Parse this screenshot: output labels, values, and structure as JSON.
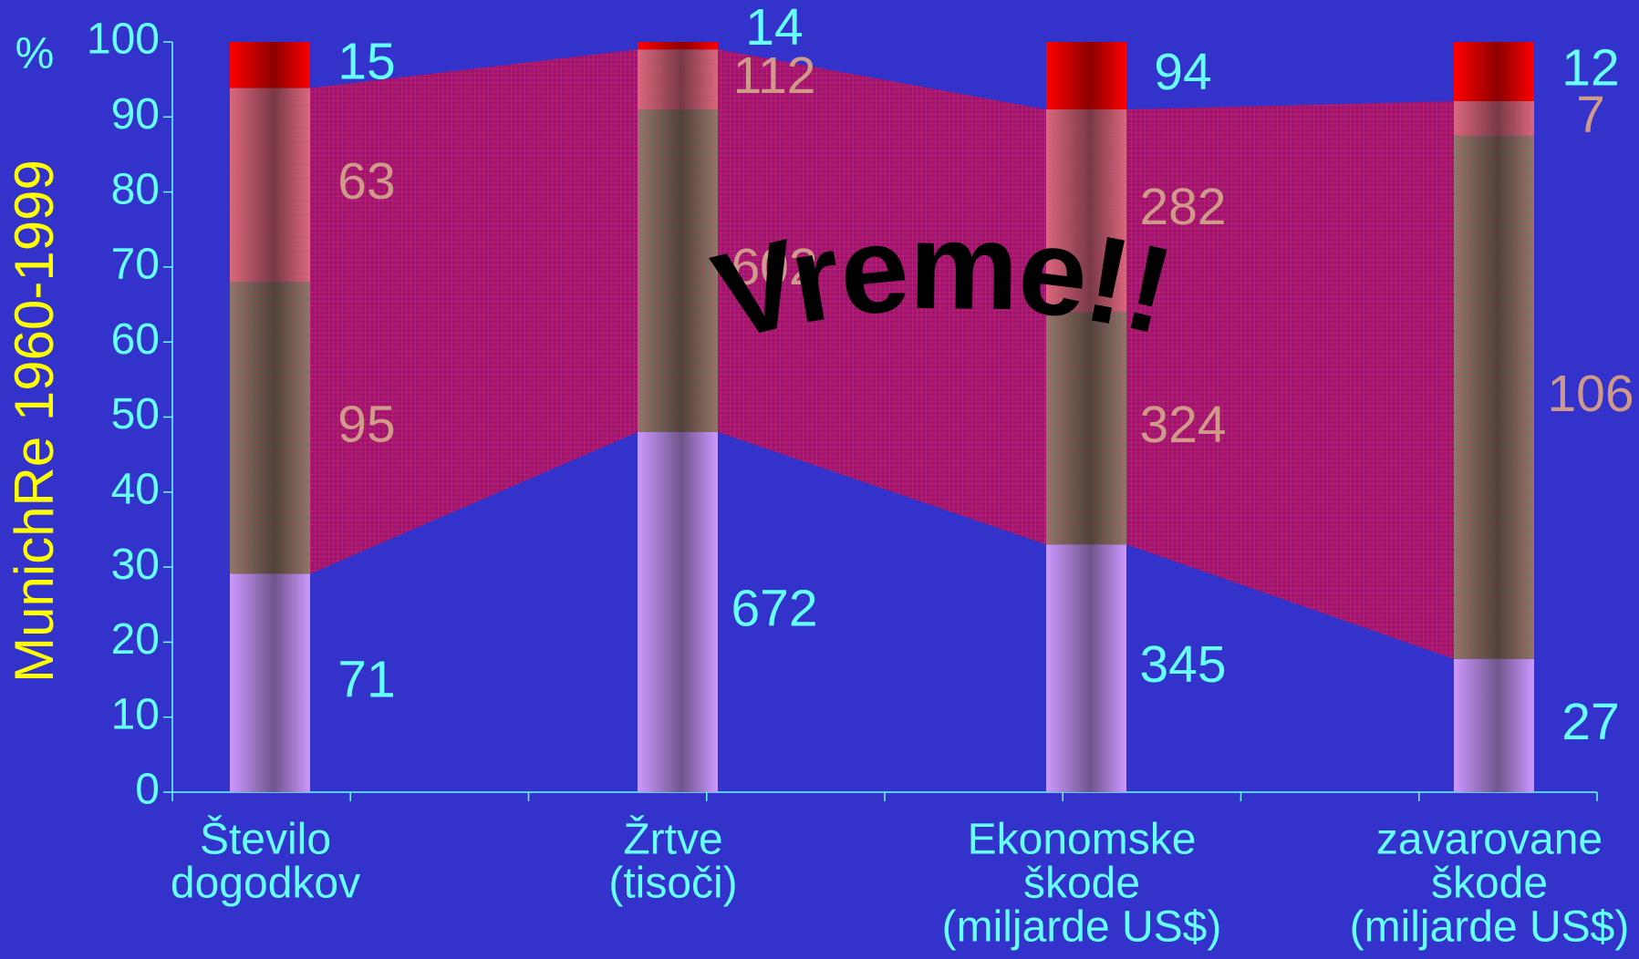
{
  "chart_data": {
    "type": "stacked_percent_bar",
    "ylabel": "MunichRe 1960-1999",
    "yunit": "%",
    "annotation": "Vreme!!",
    "categories": [
      [
        "Število",
        "dogodkov"
      ],
      [
        "Žrtve",
        "(tisoči)"
      ],
      [
        "Ekonomske",
        "škode",
        "(miljarde US$)"
      ],
      [
        "zavarovane",
        "škode",
        "(miljarde US$)"
      ]
    ],
    "series": [
      {
        "color": "#cc99ff",
        "label_color": "#66ffff",
        "values": [
          71,
          672,
          345,
          27
        ]
      },
      {
        "color": "#8a7a6a",
        "label_color": "#d09a8a",
        "values": [
          95,
          602,
          324,
          106
        ]
      },
      {
        "color": "#d86a80",
        "label_color": "#d09a8a",
        "values": [
          63,
          112,
          282,
          7
        ]
      },
      {
        "color": "#ff0000",
        "label_color": "#66ffff",
        "values": [
          15,
          14,
          94,
          12
        ]
      }
    ],
    "ylim": [
      0,
      100
    ],
    "yticks": [
      0,
      10,
      20,
      30,
      40,
      50,
      60,
      70,
      80,
      90,
      100
    ]
  }
}
